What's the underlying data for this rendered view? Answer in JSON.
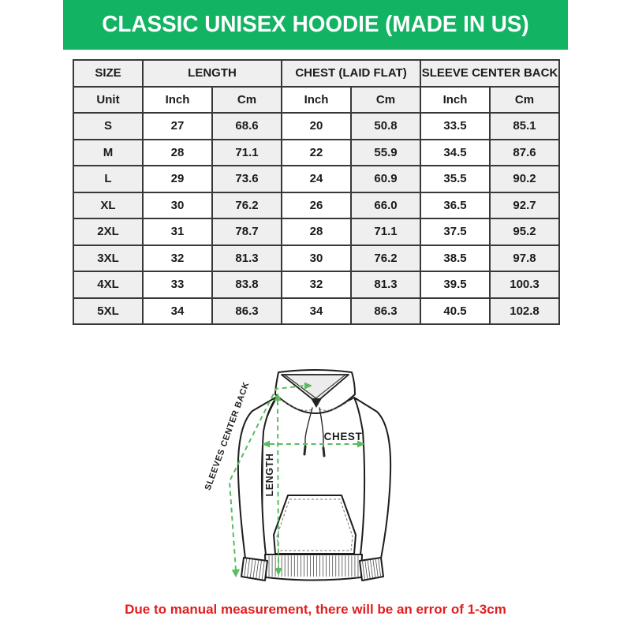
{
  "banner": {
    "title": "CLASSIC UNISEX HOODIE (MADE IN US)",
    "bg_color": "#12B362",
    "text_color": "#FFFFFF"
  },
  "table": {
    "header_groups": [
      {
        "label": "SIZE",
        "colspan": 1
      },
      {
        "label": "LENGTH",
        "colspan": 2
      },
      {
        "label": "CHEST (LAID FLAT)",
        "colspan": 2
      },
      {
        "label": "SLEEVE CENTER BACK",
        "colspan": 2
      }
    ],
    "unit_row": [
      "Unit",
      "Inch",
      "Cm",
      "Inch",
      "Cm",
      "Inch",
      "Cm"
    ],
    "rows": [
      [
        "S",
        "27",
        "68.6",
        "20",
        "50.8",
        "33.5",
        "85.1"
      ],
      [
        "M",
        "28",
        "71.1",
        "22",
        "55.9",
        "34.5",
        "87.6"
      ],
      [
        "L",
        "29",
        "73.6",
        "24",
        "60.9",
        "35.5",
        "90.2"
      ],
      [
        "XL",
        "30",
        "76.2",
        "26",
        "66.0",
        "36.5",
        "92.7"
      ],
      [
        "2XL",
        "31",
        "78.7",
        "28",
        "71.1",
        "37.5",
        "95.2"
      ],
      [
        "3XL",
        "32",
        "81.3",
        "30",
        "76.2",
        "38.5",
        "97.8"
      ],
      [
        "4XL",
        "33",
        "83.8",
        "32",
        "81.3",
        "39.5",
        "100.3"
      ],
      [
        "5XL",
        "34",
        "86.3",
        "34",
        "86.3",
        "40.5",
        "102.8"
      ]
    ],
    "shade_color": "#EFEFEF",
    "border_color": "#383838"
  },
  "diagram": {
    "labels": {
      "sleeve": "SLEEVES CENTER BACK",
      "chest": "CHEST",
      "length": "LENGTH"
    },
    "arrow_color": "#5CBB5F"
  },
  "footer": {
    "note": "Due to manual measurement, there will be an error of 1-3cm",
    "text_color": "#E21E1E"
  }
}
